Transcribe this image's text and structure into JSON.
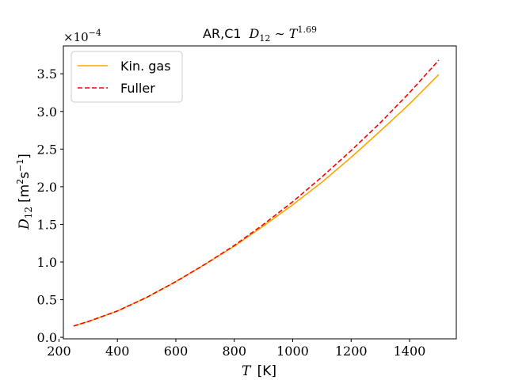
{
  "chart_data": {
    "type": "line",
    "title": "AR,C1 D₁₂ ∼ T^1.69",
    "title_parts": {
      "prefix": "AR,C1",
      "symbol": "D",
      "subscript": "12",
      "relation": "∼",
      "base": "T",
      "exponent": "1.69"
    },
    "xlabel": "T [K]",
    "xlabel_parts": {
      "symbol": "T",
      "unit": "[K]"
    },
    "ylabel": "D₁₂ [m²s⁻¹]",
    "ylabel_parts": {
      "symbol": "D",
      "subscript": "12",
      "unit_pre": "[m",
      "unit_sup1": "2",
      "unit_mid": "s",
      "unit_sup2": "−1",
      "unit_post": "]"
    },
    "y_multiplier": {
      "prefix": "×10",
      "exponent": "−4"
    },
    "xlim": [
      215,
      1560
    ],
    "ylim": [
      -0.02,
      3.87
    ],
    "x_ticks": [
      200,
      400,
      600,
      800,
      1000,
      1200,
      1400
    ],
    "x_tick_labels": [
      "200",
      "400",
      "600",
      "800",
      "1000",
      "1200",
      "1400"
    ],
    "y_ticks": [
      0.0,
      0.5,
      1.0,
      1.5,
      2.0,
      2.5,
      3.0,
      3.5
    ],
    "y_tick_labels": [
      "0.0",
      "0.5",
      "1.0",
      "1.5",
      "2.0",
      "2.5",
      "3.0",
      "3.5"
    ],
    "grid": false,
    "legend_position": "top-left",
    "series": [
      {
        "name": "Kin. gas",
        "color": "#ffa500",
        "style": "solid",
        "x": [
          250,
          300,
          400,
          500,
          600,
          700,
          800,
          900,
          1000,
          1100,
          1200,
          1300,
          1400,
          1500
        ],
        "y": [
          0.15,
          0.21,
          0.35,
          0.53,
          0.74,
          0.97,
          1.21,
          1.48,
          1.76,
          2.06,
          2.39,
          2.74,
          3.1,
          3.49
        ]
      },
      {
        "name": "Fuller",
        "color": "#ff0000",
        "style": "dashed",
        "x": [
          250,
          300,
          400,
          500,
          600,
          700,
          800,
          900,
          1000,
          1100,
          1200,
          1300,
          1400,
          1500
        ],
        "y": [
          0.15,
          0.21,
          0.35,
          0.53,
          0.74,
          0.97,
          1.22,
          1.5,
          1.8,
          2.13,
          2.48,
          2.85,
          3.25,
          3.68
        ]
      }
    ]
  }
}
